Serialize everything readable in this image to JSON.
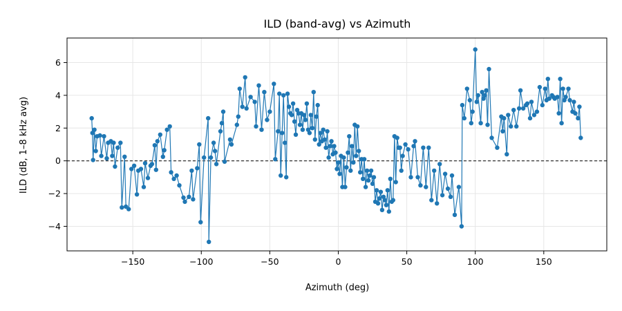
{
  "chart_data": {
    "type": "line",
    "title": "ILD (band-avg) vs Azimuth",
    "xlabel": "Azimuth (deg)",
    "ylabel": "ILD (dB, 1–8 kHz avg)",
    "xlim": [
      -198,
      196
    ],
    "ylim": [
      -5.5,
      7.5
    ],
    "xticks": [
      -150,
      -100,
      -50,
      0,
      50,
      100,
      150
    ],
    "xtick_labels": [
      "−150",
      "−100",
      "−50",
      "0",
      "50",
      "100",
      "150"
    ],
    "yticks": [
      -4,
      -2,
      0,
      2,
      4,
      6
    ],
    "ytick_labels": [
      "−4",
      "−2",
      "0",
      "2",
      "4",
      "6"
    ],
    "grid": true,
    "reference_line": {
      "y": 0,
      "style": "dashed",
      "color": "#000000"
    },
    "colors": {
      "series": "#1f77b4"
    },
    "series": [
      {
        "marker": "circle",
        "points": [
          [
            -180,
            2.6
          ],
          [
            -179.5,
            1.7
          ],
          [
            -179,
            0.05
          ],
          [
            -178,
            1.9
          ],
          [
            -177,
            0.6
          ],
          [
            -176,
            1.5
          ],
          [
            -174,
            1.55
          ],
          [
            -173,
            0.3
          ],
          [
            -171,
            1.5
          ],
          [
            -169,
            0.15
          ],
          [
            -168,
            1.1
          ],
          [
            -166,
            1.2
          ],
          [
            -165,
            0.3
          ],
          [
            -164,
            1.1
          ],
          [
            -163,
            -0.35
          ],
          [
            -161,
            0.8
          ],
          [
            -159,
            1.1
          ],
          [
            -158,
            -2.85
          ],
          [
            -156,
            0.25
          ],
          [
            -155,
            -2.8
          ],
          [
            -153,
            -2.95
          ],
          [
            -151,
            -0.5
          ],
          [
            -149,
            -0.3
          ],
          [
            -147,
            -2.05
          ],
          [
            -146,
            -0.6
          ],
          [
            -144,
            -0.5
          ],
          [
            -142,
            -1.6
          ],
          [
            -141,
            -0.15
          ],
          [
            -139,
            -1.05
          ],
          [
            -137,
            -0.3
          ],
          [
            -136,
            -0.2
          ],
          [
            -134,
            0.95
          ],
          [
            -133,
            -0.55
          ],
          [
            -132,
            1.2
          ],
          [
            -130,
            1.6
          ],
          [
            -128,
            0.25
          ],
          [
            -127,
            0.65
          ],
          [
            -125,
            1.9
          ],
          [
            -123,
            2.1
          ],
          [
            -122,
            -0.7
          ],
          [
            -120,
            -1.1
          ],
          [
            -118,
            -0.9
          ],
          [
            -116,
            -1.5
          ],
          [
            -113,
            -2.25
          ],
          [
            -112,
            -2.5
          ],
          [
            -109,
            -2.2
          ],
          [
            -107,
            -0.6
          ],
          [
            -106,
            -2.35
          ],
          [
            -103,
            -0.45
          ],
          [
            -101.5,
            1.0
          ],
          [
            -100.5,
            -3.75
          ],
          [
            -98,
            0.2
          ],
          [
            -95,
            2.6
          ],
          [
            -94.5,
            -4.95
          ],
          [
            -93,
            0.2
          ],
          [
            -91,
            1.1
          ],
          [
            -90,
            0.6
          ],
          [
            -89,
            -0.2
          ],
          [
            -86,
            1.8
          ],
          [
            -85,
            2.3
          ],
          [
            -84,
            3.0
          ],
          [
            -83,
            -0.05
          ],
          [
            -79,
            1.3
          ],
          [
            -78,
            1.0
          ],
          [
            -74,
            2.2
          ],
          [
            -73,
            2.7
          ],
          [
            -72,
            4.4
          ],
          [
            -70,
            3.3
          ],
          [
            -68,
            5.1
          ],
          [
            -67,
            3.2
          ],
          [
            -64,
            3.9
          ],
          [
            -61,
            3.6
          ],
          [
            -60,
            2.1
          ],
          [
            -58,
            4.6
          ],
          [
            -56,
            1.9
          ],
          [
            -54,
            4.2
          ],
          [
            -52,
            2.5
          ],
          [
            -50,
            3.0
          ],
          [
            -47,
            4.7
          ],
          [
            -46,
            0.1
          ],
          [
            -44,
            1.8
          ],
          [
            -43,
            4.1
          ],
          [
            -42,
            -0.9
          ],
          [
            -41,
            1.7
          ],
          [
            -40,
            4.0
          ],
          [
            -39,
            1.1
          ],
          [
            -38,
            -1.0
          ],
          [
            -37,
            4.1
          ],
          [
            -36,
            3.3
          ],
          [
            -35,
            2.9
          ],
          [
            -34,
            2.8
          ],
          [
            -33,
            3.5
          ],
          [
            -32,
            2.4
          ],
          [
            -31,
            1.6
          ],
          [
            -30,
            3.1
          ],
          [
            -29,
            2.9
          ],
          [
            -28,
            2.2
          ],
          [
            -27,
            2.9
          ],
          [
            -26,
            1.9
          ],
          [
            -25,
            2.8
          ],
          [
            -24,
            2.5
          ],
          [
            -23,
            3.5
          ],
          [
            -22,
            1.9
          ],
          [
            -21,
            1.7
          ],
          [
            -20,
            2.8
          ],
          [
            -19,
            2.0
          ],
          [
            -18,
            4.2
          ],
          [
            -17,
            1.3
          ],
          [
            -16,
            2.7
          ],
          [
            -15,
            3.4
          ],
          [
            -14,
            1.0
          ],
          [
            -13,
            1.7
          ],
          [
            -12,
            1.2
          ],
          [
            -11,
            1.9
          ],
          [
            -10,
            1.3
          ],
          [
            -9,
            0.8
          ],
          [
            -8,
            1.8
          ],
          [
            -7,
            0.2
          ],
          [
            -6,
            0.9
          ],
          [
            -5,
            1.2
          ],
          [
            -4,
            0.4
          ],
          [
            -3,
            0.9
          ],
          [
            -2,
            0.5
          ],
          [
            -1,
            -0.5
          ],
          [
            0,
            -0.1
          ],
          [
            1,
            -0.8
          ],
          [
            2,
            0.3
          ],
          [
            3,
            -1.6
          ],
          [
            4,
            0.2
          ],
          [
            5,
            -1.6
          ],
          [
            6,
            -0.4
          ],
          [
            7,
            0.5
          ],
          [
            8,
            1.5
          ],
          [
            9,
            -0.6
          ],
          [
            10,
            0.9
          ],
          [
            11,
            -0.1
          ],
          [
            12,
            2.2
          ],
          [
            13,
            0.3
          ],
          [
            14,
            2.1
          ],
          [
            15,
            0.6
          ],
          [
            16,
            -0.7
          ],
          [
            17,
            0.1
          ],
          [
            18,
            -1.1
          ],
          [
            19,
            0.1
          ],
          [
            20,
            -1.6
          ],
          [
            21,
            -0.6
          ],
          [
            22,
            -1.2
          ],
          [
            23,
            -0.9
          ],
          [
            24,
            -0.6
          ],
          [
            25,
            -1.4
          ],
          [
            26,
            -1.0
          ],
          [
            27,
            -2.5
          ],
          [
            28,
            -1.8
          ],
          [
            29,
            -2.6
          ],
          [
            30,
            -2.3
          ],
          [
            31,
            -1.9
          ],
          [
            32,
            -3.0
          ],
          [
            33,
            -2.2
          ],
          [
            34,
            -2.4
          ],
          [
            35,
            -2.7
          ],
          [
            36,
            -1.8
          ],
          [
            37,
            -3.1
          ],
          [
            38,
            -1.1
          ],
          [
            39,
            -2.5
          ],
          [
            40,
            -2.4
          ],
          [
            41,
            1.5
          ],
          [
            42,
            -1.3
          ],
          [
            43,
            1.4
          ],
          [
            44,
            0.8
          ],
          [
            45,
            0.8
          ],
          [
            46,
            -0.6
          ],
          [
            47,
            0.3
          ],
          [
            49,
            1.0
          ],
          [
            51,
            0.7
          ],
          [
            53,
            -1.0
          ],
          [
            55,
            0.9
          ],
          [
            56,
            1.2
          ],
          [
            58,
            -1.0
          ],
          [
            60,
            -1.5
          ],
          [
            62,
            0.8
          ],
          [
            64,
            -1.6
          ],
          [
            66,
            0.8
          ],
          [
            68,
            -2.4
          ],
          [
            70,
            -0.6
          ],
          [
            72,
            -2.6
          ],
          [
            74,
            -0.2
          ],
          [
            76,
            -2.1
          ],
          [
            78,
            -0.8
          ],
          [
            80,
            -1.7
          ],
          [
            82,
            -2.2
          ],
          [
            83,
            -0.9
          ],
          [
            85,
            -3.3
          ],
          [
            88,
            -1.6
          ],
          [
            90,
            -4.0
          ],
          [
            90.5,
            3.4
          ],
          [
            92,
            2.6
          ],
          [
            94,
            4.4
          ],
          [
            96,
            3.7
          ],
          [
            97,
            2.3
          ],
          [
            98,
            3.0
          ],
          [
            100,
            6.8
          ],
          [
            101,
            3.6
          ],
          [
            102,
            4.0
          ],
          [
            104,
            2.3
          ],
          [
            105,
            4.2
          ],
          [
            106,
            3.8
          ],
          [
            107,
            4.0
          ],
          [
            108,
            4.3
          ],
          [
            109,
            2.2
          ],
          [
            110,
            5.6
          ],
          [
            112,
            1.4
          ],
          [
            116,
            0.8
          ],
          [
            119,
            2.7
          ],
          [
            120,
            1.8
          ],
          [
            121,
            2.6
          ],
          [
            123,
            0.4
          ],
          [
            124,
            2.8
          ],
          [
            126,
            2.1
          ],
          [
            128,
            3.1
          ],
          [
            130,
            2.1
          ],
          [
            132,
            3.2
          ],
          [
            133,
            4.3
          ],
          [
            135,
            3.2
          ],
          [
            137,
            3.4
          ],
          [
            138,
            3.5
          ],
          [
            140,
            2.6
          ],
          [
            141,
            3.6
          ],
          [
            143,
            2.8
          ],
          [
            145,
            3.0
          ],
          [
            147,
            4.5
          ],
          [
            149,
            3.4
          ],
          [
            151,
            4.4
          ],
          [
            152,
            3.7
          ],
          [
            153,
            5.0
          ],
          [
            154,
            3.8
          ],
          [
            156,
            4.0
          ],
          [
            157,
            3.9
          ],
          [
            158,
            3.8
          ],
          [
            160,
            3.9
          ],
          [
            161,
            2.9
          ],
          [
            162,
            5.0
          ],
          [
            163,
            2.3
          ],
          [
            164,
            4.4
          ],
          [
            165,
            3.7
          ],
          [
            166,
            3.9
          ],
          [
            168,
            4.4
          ],
          [
            169,
            3.7
          ],
          [
            171,
            3.0
          ],
          [
            172,
            3.6
          ],
          [
            173,
            2.9
          ],
          [
            175,
            2.6
          ],
          [
            176,
            3.3
          ],
          [
            177,
            1.4
          ]
        ]
      }
    ]
  }
}
